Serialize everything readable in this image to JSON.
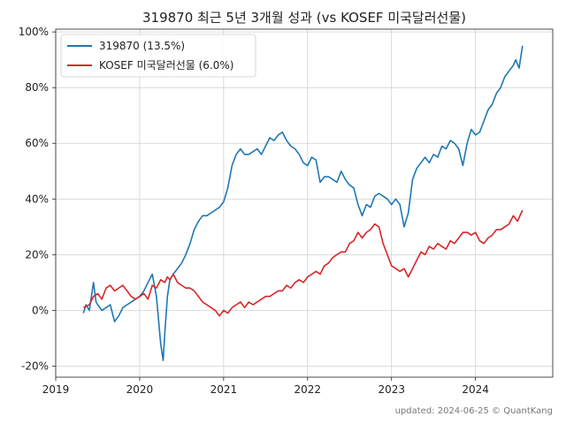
{
  "chart_data": {
    "type": "line",
    "title": "319870 최근 5년 3개월 성과 (vs KOSEF 미국달러선물)",
    "xlabel": "",
    "ylabel": "",
    "x_ticks": [
      "2019",
      "2020",
      "2021",
      "2022",
      "2023",
      "2024"
    ],
    "y_ticks": [
      "-20%",
      "0%",
      "20%",
      "40%",
      "60%",
      "80%",
      "100%"
    ],
    "y_tick_values": [
      -20,
      0,
      20,
      40,
      60,
      80,
      100
    ],
    "xlim": [
      2019.0,
      2024.92
    ],
    "ylim": [
      -24,
      101
    ],
    "grid": true,
    "legend_position": "top-left",
    "credit": "updated: 2024-06-25 © QuantKang",
    "series": [
      {
        "name": "319870 (13.5%)",
        "color": "#1f77b4",
        "x": [
          2019.33,
          2019.36,
          2019.4,
          2019.45,
          2019.48,
          2019.5,
          2019.55,
          2019.6,
          2019.65,
          2019.7,
          2019.75,
          2019.8,
          2019.85,
          2019.9,
          2019.95,
          2020.0,
          2020.05,
          2020.1,
          2020.15,
          2020.2,
          2020.25,
          2020.28,
          2020.3,
          2020.33,
          2020.36,
          2020.4,
          2020.45,
          2020.5,
          2020.55,
          2020.6,
          2020.65,
          2020.7,
          2020.75,
          2020.8,
          2020.85,
          2020.9,
          2020.95,
          2021.0,
          2021.05,
          2021.1,
          2021.15,
          2021.2,
          2021.25,
          2021.3,
          2021.35,
          2021.4,
          2021.45,
          2021.5,
          2021.55,
          2021.6,
          2021.65,
          2021.7,
          2021.75,
          2021.8,
          2021.85,
          2021.9,
          2021.95,
          2022.0,
          2022.05,
          2022.1,
          2022.15,
          2022.2,
          2022.25,
          2022.3,
          2022.35,
          2022.4,
          2022.45,
          2022.5,
          2022.55,
          2022.6,
          2022.65,
          2022.7,
          2022.75,
          2022.8,
          2022.85,
          2022.9,
          2022.95,
          2023.0,
          2023.05,
          2023.1,
          2023.15,
          2023.2,
          2023.25,
          2023.3,
          2023.35,
          2023.4,
          2023.45,
          2023.5,
          2023.55,
          2023.6,
          2023.65,
          2023.7,
          2023.75,
          2023.8,
          2023.85,
          2023.9,
          2023.95,
          2024.0,
          2024.05,
          2024.1,
          2024.15,
          2024.2,
          2024.25,
          2024.3,
          2024.35,
          2024.4,
          2024.45,
          2024.48,
          2024.52,
          2024.56
        ],
        "values": [
          -1,
          2,
          0,
          10,
          3,
          2,
          0,
          1,
          2,
          -4,
          -2,
          1,
          2,
          3,
          4,
          5,
          7,
          10,
          13,
          5,
          -12,
          -18,
          -8,
          5,
          11,
          13,
          15,
          17,
          20,
          24,
          29,
          32,
          34,
          34,
          35,
          36,
          37,
          39,
          44,
          52,
          56,
          58,
          56,
          56,
          57,
          58,
          56,
          59,
          62,
          61,
          63,
          64,
          61,
          59,
          58,
          56,
          53,
          52,
          55,
          54,
          46,
          48,
          48,
          47,
          46,
          50,
          47,
          45,
          44,
          38,
          34,
          38,
          37,
          41,
          42,
          41,
          40,
          38,
          40,
          38,
          30,
          35,
          47,
          51,
          53,
          55,
          53,
          56,
          55,
          59,
          58,
          61,
          60,
          58,
          52,
          60,
          65,
          63,
          64,
          68,
          72,
          74,
          78,
          80,
          84,
          86,
          88,
          90,
          87,
          95
        ]
      },
      {
        "name": "KOSEF 미국달러선물 (6.0%)",
        "color": "#d62728",
        "x": [
          2019.33,
          2019.4,
          2019.45,
          2019.5,
          2019.55,
          2019.6,
          2019.65,
          2019.7,
          2019.75,
          2019.8,
          2019.85,
          2019.9,
          2019.95,
          2020.0,
          2020.05,
          2020.1,
          2020.15,
          2020.2,
          2020.25,
          2020.3,
          2020.33,
          2020.36,
          2020.4,
          2020.45,
          2020.5,
          2020.55,
          2020.6,
          2020.65,
          2020.7,
          2020.75,
          2020.8,
          2020.85,
          2020.9,
          2020.95,
          2021.0,
          2021.05,
          2021.1,
          2021.15,
          2021.2,
          2021.25,
          2021.3,
          2021.35,
          2021.4,
          2021.45,
          2021.5,
          2021.55,
          2021.6,
          2021.65,
          2021.7,
          2021.75,
          2021.8,
          2021.85,
          2021.9,
          2021.95,
          2022.0,
          2022.05,
          2022.1,
          2022.15,
          2022.2,
          2022.25,
          2022.3,
          2022.35,
          2022.4,
          2022.45,
          2022.5,
          2022.55,
          2022.6,
          2022.65,
          2022.7,
          2022.75,
          2022.8,
          2022.85,
          2022.9,
          2022.95,
          2023.0,
          2023.05,
          2023.1,
          2023.15,
          2023.2,
          2023.25,
          2023.3,
          2023.35,
          2023.4,
          2023.45,
          2023.5,
          2023.55,
          2023.6,
          2023.65,
          2023.7,
          2023.75,
          2023.8,
          2023.85,
          2023.9,
          2023.95,
          2024.0,
          2024.05,
          2024.1,
          2024.15,
          2024.2,
          2024.25,
          2024.3,
          2024.35,
          2024.4,
          2024.45,
          2024.5,
          2024.56
        ],
        "values": [
          1,
          2,
          5,
          6,
          4,
          8,
          9,
          7,
          8,
          9,
          7,
          5,
          4,
          5,
          6,
          4,
          9,
          8,
          11,
          10,
          12,
          11,
          13,
          10,
          9,
          8,
          8,
          7,
          5,
          3,
          2,
          1,
          0,
          -2,
          0,
          -1,
          1,
          2,
          3,
          1,
          3,
          2,
          3,
          4,
          5,
          5,
          6,
          7,
          7,
          9,
          8,
          10,
          11,
          10,
          12,
          13,
          14,
          13,
          16,
          17,
          19,
          20,
          21,
          21,
          24,
          25,
          28,
          26,
          28,
          29,
          31,
          30,
          24,
          20,
          16,
          15,
          14,
          15,
          12,
          15,
          18,
          21,
          20,
          23,
          22,
          24,
          23,
          22,
          25,
          24,
          26,
          28,
          28,
          27,
          28,
          25,
          24,
          26,
          27,
          29,
          29,
          30,
          31,
          34,
          32,
          36
        ]
      }
    ]
  }
}
